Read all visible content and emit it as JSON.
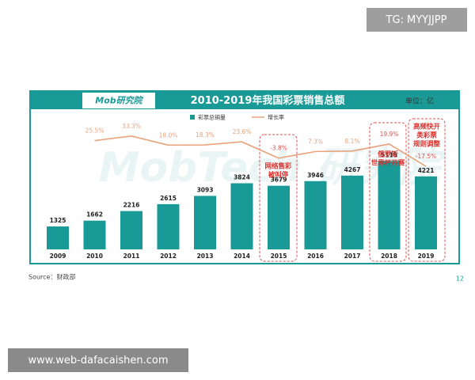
{
  "watermark_top": "TG: MYYJJPP",
  "watermark_bottom": "www.web-dafacaishen.com",
  "logo": "Mob研究院",
  "background_watermark": "MobTech 研究院",
  "unit": "单位：亿",
  "source": "Source：财政部",
  "page_number": "12",
  "chart_data": {
    "type": "bar_line",
    "title": "2010-2019年我国彩票销售总额",
    "categories": [
      "2009",
      "2010",
      "2011",
      "2012",
      "2013",
      "2014",
      "2015",
      "2016",
      "2017",
      "2018",
      "2019"
    ],
    "series": [
      {
        "name": "彩票总销量",
        "color": "#1a9a96",
        "values": [
          1325,
          1662,
          2216,
          2615,
          3093,
          3824,
          3679,
          3946,
          4267,
          5115,
          4221
        ]
      },
      {
        "name": "增长率",
        "color": "#e8a27c",
        "axis": "y2",
        "values": [
          null,
          25.5,
          33.3,
          18.0,
          18.3,
          23.6,
          -3.8,
          7.3,
          8.1,
          19.9,
          -17.5
        ],
        "value_labels": [
          null,
          "25.5%",
          "33.3%",
          "18.0%",
          "18.3%",
          "23.6%",
          "-3.8%",
          "7.3%",
          "8.1%",
          "19.9%",
          "-17.5%"
        ]
      }
    ],
    "ylim": [
      0,
      6500
    ],
    "y2lim": [
      -44,
      49
    ],
    "annotations": [
      {
        "lines": [
          "网络售彩",
          "被叫停"
        ]
      },
      {
        "lines": [
          "俄罗斯",
          "世界杯开赛"
        ]
      },
      {
        "lines": [
          "高频快开",
          "类彩票",
          "规则调整"
        ]
      }
    ]
  }
}
